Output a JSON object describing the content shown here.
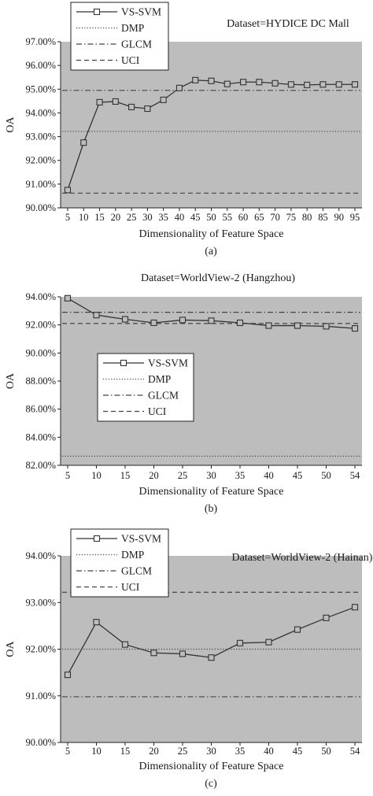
{
  "colors": {
    "plot_background": "#bdbdbd",
    "series_line": "#333333",
    "marker_fill": "#bdbdbd",
    "legend_background": "#ffffff"
  },
  "chart_data": [
    {
      "type": "line",
      "panel_label": "(a)",
      "title": "",
      "annotation": "Dataset=HYDICE DC Mall",
      "xlabel": "Dimensionality of Feature Space",
      "ylabel": "OA",
      "ylim": [
        90,
        97
      ],
      "ytick_values": [
        90,
        91,
        92,
        93,
        94,
        95,
        96,
        97
      ],
      "ytick_labels": [
        "90.00%",
        "91.00%",
        "92.00%",
        "93.00%",
        "94.00%",
        "95.00%",
        "96.00%",
        "97.00%"
      ],
      "x": [
        5,
        10,
        15,
        20,
        25,
        30,
        35,
        40,
        45,
        50,
        55,
        60,
        65,
        70,
        75,
        80,
        85,
        90,
        95
      ],
      "legend_position": "top-left",
      "grid": false,
      "series": [
        {
          "name": "VS-SVM",
          "style": "line-square",
          "values": [
            90.75,
            92.75,
            94.45,
            94.48,
            94.25,
            94.18,
            94.55,
            95.05,
            95.38,
            95.35,
            95.22,
            95.3,
            95.3,
            95.25,
            95.2,
            95.18,
            95.2,
            95.2,
            95.2
          ]
        },
        {
          "name": "DMP",
          "style": "dotted",
          "value": 93.22
        },
        {
          "name": "GLCM",
          "style": "dashdot",
          "value": 94.95
        },
        {
          "name": "UCI",
          "style": "dashed",
          "value": 90.62
        }
      ]
    },
    {
      "type": "line",
      "panel_label": "(b)",
      "title": "Dataset=WorldView-2 (Hangzhou)",
      "annotation": "",
      "xlabel": "Dimensionality of Feature Space",
      "ylabel": "OA",
      "ylim": [
        82,
        94
      ],
      "ytick_values": [
        82,
        84,
        86,
        88,
        90,
        92,
        94
      ],
      "ytick_labels": [
        "82.00%",
        "84.00%",
        "86.00%",
        "88.00%",
        "90.00%",
        "92.00%",
        "94.00%"
      ],
      "x": [
        5,
        10,
        15,
        20,
        25,
        30,
        35,
        40,
        45,
        50,
        54
      ],
      "legend_position": "center-left",
      "grid": false,
      "series": [
        {
          "name": "VS-SVM",
          "style": "line-square",
          "values": [
            93.9,
            92.7,
            92.4,
            92.15,
            92.35,
            92.3,
            92.15,
            91.95,
            91.95,
            91.9,
            91.75
          ]
        },
        {
          "name": "DMP",
          "style": "dotted",
          "value": 82.65
        },
        {
          "name": "GLCM",
          "style": "dashdot",
          "value": 92.9
        },
        {
          "name": "UCI",
          "style": "dashed",
          "value": 92.1
        }
      ]
    },
    {
      "type": "line",
      "panel_label": "(c)",
      "title": "",
      "annotation": "Dataset=WorldView-2 (Hainan)",
      "xlabel": "Dimensionality of Feature Space",
      "ylabel": "OA",
      "ylim": [
        90,
        94
      ],
      "ytick_values": [
        90,
        91,
        92,
        93,
        94
      ],
      "ytick_labels": [
        "90.00%",
        "91.00%",
        "92.00%",
        "93.00%",
        "94.00%"
      ],
      "x": [
        5,
        10,
        15,
        20,
        25,
        30,
        35,
        40,
        45,
        50,
        54
      ],
      "legend_position": "top-left",
      "grid": false,
      "series": [
        {
          "name": "VS-SVM",
          "style": "line-square",
          "values": [
            91.45,
            92.58,
            92.1,
            91.92,
            91.9,
            91.82,
            92.13,
            92.15,
            92.42,
            92.67,
            92.9
          ]
        },
        {
          "name": "DMP",
          "style": "dotted",
          "value": 92.0
        },
        {
          "name": "GLCM",
          "style": "dashdot",
          "value": 90.98
        },
        {
          "name": "UCI",
          "style": "dashed",
          "value": 93.22
        }
      ]
    }
  ]
}
